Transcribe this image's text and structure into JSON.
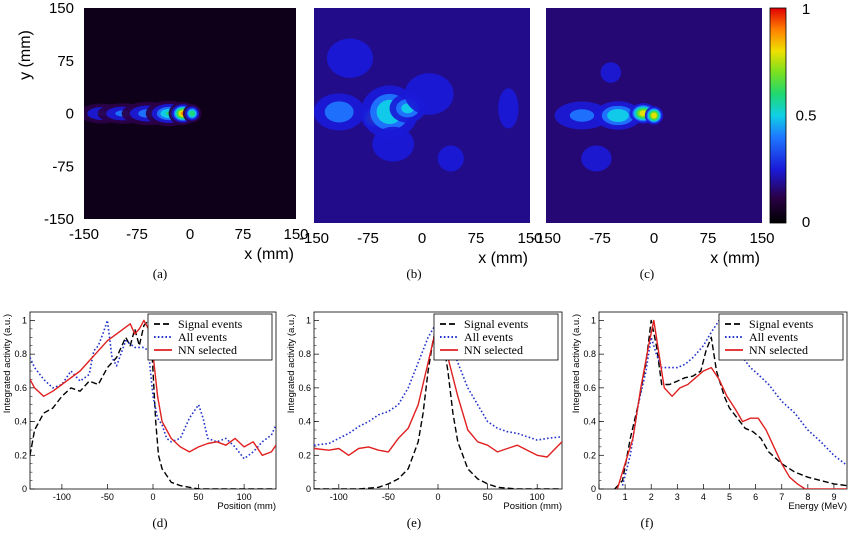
{
  "chart_data": [
    {
      "panel": "(a)",
      "type": "heatmap",
      "xlabel": "x (mm)",
      "ylabel": "y (mm)",
      "xticks": [
        "-150",
        "-75",
        "0",
        "75",
        "150"
      ],
      "yticks": [
        "150",
        "75",
        "0",
        "-75",
        "-150"
      ],
      "xlim": [
        -150,
        150
      ],
      "ylim": [
        -150,
        150
      ],
      "blobs": [
        {
          "x": -125,
          "y": 0,
          "sx": 20,
          "sy": 9,
          "v": 0.42
        },
        {
          "x": -95,
          "y": 0,
          "sx": 22,
          "sy": 9,
          "v": 0.45
        },
        {
          "x": -60,
          "y": 0,
          "sx": 22,
          "sy": 10,
          "v": 0.48
        },
        {
          "x": -30,
          "y": 0,
          "sx": 18,
          "sy": 10,
          "v": 0.62
        },
        {
          "x": -10,
          "y": 0,
          "sx": 10,
          "sy": 8,
          "v": 0.95
        },
        {
          "x": 3,
          "y": 0,
          "sx": 7,
          "sy": 7,
          "v": 0.7
        }
      ],
      "background": 0.04
    },
    {
      "panel": "(b)",
      "type": "heatmap",
      "xlabel": "x (mm)",
      "xticks": [
        "-150",
        "-75",
        "0",
        "75",
        "150"
      ],
      "xlim": [
        -150,
        150
      ],
      "ylim": [
        -150,
        150
      ],
      "blobs": [
        {
          "x": -115,
          "y": 5,
          "sx": 30,
          "sy": 22,
          "v": 0.5
        },
        {
          "x": -68,
          "y": -3,
          "sx": 10,
          "sy": 10,
          "v": 0.9
        },
        {
          "x": -45,
          "y": 5,
          "sx": 30,
          "sy": 28,
          "v": 0.6
        },
        {
          "x": -20,
          "y": 10,
          "sx": 20,
          "sy": 16,
          "v": 0.55
        },
        {
          "x": -40,
          "y": -40,
          "sx": 30,
          "sy": 25,
          "v": 0.4
        },
        {
          "x": 10,
          "y": 30,
          "sx": 35,
          "sy": 30,
          "v": 0.4
        },
        {
          "x": -100,
          "y": 80,
          "sx": 35,
          "sy": 30,
          "v": 0.38
        },
        {
          "x": 40,
          "y": -60,
          "sx": 30,
          "sy": 30,
          "v": 0.3
        },
        {
          "x": 120,
          "y": 10,
          "sx": 20,
          "sy": 40,
          "v": 0.32
        }
      ],
      "background": 0.18
    },
    {
      "panel": "(c)",
      "type": "heatmap",
      "xlabel": "x (mm)",
      "xticks": [
        "-150",
        "-75",
        "0",
        "75",
        "150"
      ],
      "xlim": [
        -150,
        150
      ],
      "ylim": [
        -150,
        150
      ],
      "colorbar": {
        "ticks": [
          "1",
          "0.5",
          "0"
        ],
        "range": [
          0,
          1
        ]
      },
      "blobs": [
        {
          "x": -100,
          "y": 0,
          "sx": 35,
          "sy": 18,
          "v": 0.45
        },
        {
          "x": -50,
          "y": 0,
          "sx": 25,
          "sy": 15,
          "v": 0.6
        },
        {
          "x": -15,
          "y": 3,
          "sx": 12,
          "sy": 9,
          "v": 0.88
        },
        {
          "x": 0,
          "y": 0,
          "sx": 8,
          "sy": 8,
          "v": 0.9
        },
        {
          "x": -60,
          "y": 60,
          "sx": 30,
          "sy": 30,
          "v": 0.28
        },
        {
          "x": -80,
          "y": -60,
          "sx": 35,
          "sy": 30,
          "v": 0.3
        },
        {
          "x": 60,
          "y": 40,
          "sx": 30,
          "sy": 35,
          "v": 0.22
        }
      ],
      "background": 0.16
    },
    {
      "panel": "(d)",
      "type": "line",
      "xlabel": "Position (mm)",
      "ylabel": "Integrated activity (a.u.)",
      "xlim": [
        -135,
        135
      ],
      "ylim": [
        0,
        1.05
      ],
      "xticks": [
        "-100",
        "-50",
        "0",
        "50",
        "100"
      ],
      "yticks": [
        "0",
        "0.2",
        "0.4",
        "0.6",
        "0.8",
        "1"
      ],
      "legend": "top-right",
      "series": [
        {
          "name": "Signal events",
          "style": "dashed",
          "color": "#000000",
          "x": [
            -135,
            -130,
            -120,
            -110,
            -100,
            -90,
            -80,
            -70,
            -60,
            -50,
            -40,
            -30,
            -25,
            -20,
            -15,
            -10,
            -5,
            -2,
            0,
            3,
            6,
            10,
            15,
            20,
            30,
            40,
            50,
            60,
            70,
            80,
            90,
            100,
            110,
            120,
            135
          ],
          "y": [
            0.2,
            0.35,
            0.45,
            0.48,
            0.55,
            0.6,
            0.58,
            0.64,
            0.62,
            0.72,
            0.78,
            0.9,
            0.85,
            0.95,
            0.85,
            0.97,
            1.0,
            0.9,
            0.7,
            0.4,
            0.2,
            0.12,
            0.08,
            0.04,
            0.02,
            0.01,
            0.0,
            0.0,
            0.0,
            0.0,
            0.0,
            0.0,
            0.0,
            0.0,
            0.0
          ]
        },
        {
          "name": "All events",
          "style": "dotted",
          "color": "#2233cc",
          "x": [
            -135,
            -130,
            -120,
            -110,
            -100,
            -90,
            -80,
            -70,
            -65,
            -60,
            -55,
            -50,
            -45,
            -40,
            -30,
            -20,
            -10,
            -5,
            0,
            5,
            10,
            15,
            20,
            30,
            40,
            50,
            55,
            60,
            70,
            80,
            90,
            100,
            110,
            120,
            130,
            135
          ],
          "y": [
            0.78,
            0.72,
            0.65,
            0.6,
            0.62,
            0.7,
            0.64,
            0.68,
            0.82,
            0.85,
            0.92,
            1.0,
            0.78,
            0.73,
            0.88,
            0.84,
            0.84,
            0.82,
            0.55,
            0.42,
            0.38,
            0.3,
            0.28,
            0.3,
            0.42,
            0.5,
            0.42,
            0.3,
            0.28,
            0.3,
            0.25,
            0.18,
            0.22,
            0.28,
            0.32,
            0.38
          ]
        },
        {
          "name": "NN selected",
          "style": "solid",
          "color": "#e02020",
          "x": [
            -135,
            -130,
            -120,
            -110,
            -100,
            -90,
            -80,
            -70,
            -60,
            -50,
            -40,
            -30,
            -25,
            -20,
            -15,
            -10,
            -5,
            0,
            5,
            10,
            15,
            20,
            30,
            40,
            50,
            60,
            70,
            80,
            90,
            100,
            110,
            120,
            130,
            135
          ],
          "y": [
            0.65,
            0.6,
            0.55,
            0.58,
            0.62,
            0.66,
            0.7,
            0.76,
            0.82,
            0.88,
            0.92,
            0.96,
            0.98,
            0.92,
            0.95,
            1.0,
            0.95,
            0.8,
            0.55,
            0.4,
            0.35,
            0.3,
            0.25,
            0.22,
            0.25,
            0.27,
            0.28,
            0.26,
            0.3,
            0.25,
            0.28,
            0.2,
            0.22,
            0.26
          ]
        }
      ]
    },
    {
      "panel": "(e)",
      "type": "line",
      "xlabel": "Position (mm)",
      "ylabel": "Integrated activity (a.u.)",
      "xlim": [
        -125,
        125
      ],
      "ylim": [
        0,
        1.05
      ],
      "xticks": [
        "-100",
        "-50",
        "0",
        "50",
        "100"
      ],
      "yticks": [
        "0",
        "0.2",
        "0.4",
        "0.6",
        "0.8",
        "1"
      ],
      "legend": "top-right",
      "series": [
        {
          "name": "Signal events",
          "style": "dashed",
          "color": "#000000",
          "x": [
            -125,
            -100,
            -80,
            -60,
            -50,
            -40,
            -30,
            -20,
            -15,
            -10,
            -5,
            0,
            5,
            10,
            15,
            20,
            30,
            40,
            50,
            60,
            80,
            100,
            125
          ],
          "y": [
            0.0,
            0.0,
            0.0,
            0.01,
            0.03,
            0.06,
            0.12,
            0.28,
            0.45,
            0.7,
            0.88,
            1.0,
            0.88,
            0.7,
            0.45,
            0.28,
            0.12,
            0.06,
            0.03,
            0.01,
            0.0,
            0.0,
            0.0
          ]
        },
        {
          "name": "All events",
          "style": "dotted",
          "color": "#2233cc",
          "x": [
            -125,
            -110,
            -100,
            -90,
            -80,
            -70,
            -60,
            -50,
            -40,
            -30,
            -20,
            -10,
            0,
            10,
            20,
            30,
            40,
            50,
            60,
            70,
            80,
            90,
            100,
            110,
            125
          ],
          "y": [
            0.26,
            0.27,
            0.3,
            0.33,
            0.37,
            0.4,
            0.44,
            0.46,
            0.5,
            0.6,
            0.75,
            0.9,
            1.0,
            0.9,
            0.75,
            0.6,
            0.5,
            0.4,
            0.36,
            0.34,
            0.33,
            0.31,
            0.29,
            0.3,
            0.31
          ]
        },
        {
          "name": "NN selected",
          "style": "solid",
          "color": "#e02020",
          "x": [
            -125,
            -110,
            -100,
            -90,
            -80,
            -70,
            -60,
            -50,
            -40,
            -30,
            -20,
            -10,
            0,
            10,
            20,
            30,
            40,
            50,
            60,
            70,
            80,
            90,
            100,
            110,
            125
          ],
          "y": [
            0.24,
            0.23,
            0.24,
            0.2,
            0.24,
            0.25,
            0.23,
            0.22,
            0.3,
            0.36,
            0.5,
            0.75,
            1.0,
            0.78,
            0.55,
            0.35,
            0.28,
            0.26,
            0.22,
            0.24,
            0.26,
            0.23,
            0.2,
            0.19,
            0.28
          ]
        }
      ]
    },
    {
      "panel": "(f)",
      "type": "line",
      "xlabel": "Energy (MeV)",
      "ylabel": "Integrated activity (a.u.)",
      "xlim": [
        0,
        9.5
      ],
      "ylim": [
        0,
        1.05
      ],
      "xticks": [
        "0",
        "1",
        "2",
        "3",
        "4",
        "5",
        "6",
        "7",
        "8",
        "9"
      ],
      "yticks": [
        "0",
        "0.2",
        "0.4",
        "0.6",
        "0.8",
        "1"
      ],
      "legend": "top-right",
      "series": [
        {
          "name": "Signal events",
          "style": "dashed",
          "color": "#000000",
          "x": [
            0.6,
            0.9,
            1.2,
            1.5,
            1.8,
            2.0,
            2.2,
            2.4,
            2.7,
            3.0,
            3.3,
            3.6,
            3.9,
            4.1,
            4.3,
            4.5,
            4.8,
            5.0,
            5.3,
            5.6,
            5.9,
            6.2,
            6.5,
            7.0,
            7.5,
            8.0,
            8.5,
            9.0,
            9.5
          ],
          "y": [
            0.0,
            0.05,
            0.3,
            0.5,
            0.75,
            1.0,
            0.85,
            0.62,
            0.62,
            0.64,
            0.66,
            0.67,
            0.7,
            0.82,
            0.9,
            0.7,
            0.55,
            0.48,
            0.42,
            0.36,
            0.34,
            0.3,
            0.22,
            0.15,
            0.1,
            0.07,
            0.05,
            0.03,
            0.02
          ]
        },
        {
          "name": "All events",
          "style": "dotted",
          "color": "#2233cc",
          "x": [
            0.9,
            1.2,
            1.5,
            1.8,
            2.0,
            2.2,
            2.4,
            2.7,
            3.0,
            3.3,
            3.6,
            4.0,
            4.3,
            4.6,
            4.9,
            5.2,
            5.5,
            5.8,
            6.1,
            6.5,
            7.0,
            7.5,
            8.0,
            8.5,
            9.0,
            9.5
          ],
          "y": [
            0.02,
            0.2,
            0.5,
            0.7,
            0.9,
            0.8,
            0.72,
            0.72,
            0.72,
            0.74,
            0.78,
            0.85,
            0.93,
            1.0,
            0.98,
            0.9,
            0.78,
            0.72,
            0.68,
            0.62,
            0.52,
            0.45,
            0.35,
            0.28,
            0.2,
            0.14
          ]
        },
        {
          "name": "NN selected",
          "style": "solid",
          "color": "#e02020",
          "x": [
            0.7,
            1.0,
            1.3,
            1.6,
            1.9,
            2.1,
            2.3,
            2.5,
            2.8,
            3.1,
            3.4,
            3.7,
            4.0,
            4.3,
            4.6,
            4.9,
            5.2,
            5.5,
            5.8,
            6.1,
            6.4,
            6.7,
            7.0,
            7.3,
            7.6,
            7.9,
            8.2,
            9.5
          ],
          "y": [
            0.0,
            0.15,
            0.3,
            0.6,
            0.85,
            1.0,
            0.8,
            0.6,
            0.55,
            0.6,
            0.62,
            0.66,
            0.7,
            0.72,
            0.65,
            0.55,
            0.48,
            0.4,
            0.42,
            0.42,
            0.35,
            0.25,
            0.15,
            0.07,
            0.03,
            0.0,
            0.0,
            0.0
          ]
        }
      ]
    }
  ]
}
